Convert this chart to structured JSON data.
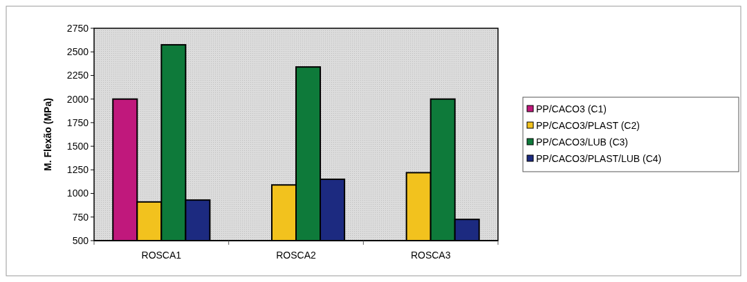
{
  "chart_data": {
    "type": "bar",
    "ylabel": "M. Flexão (MPa)",
    "categories": [
      "ROSCA1",
      "ROSCA2",
      "ROSCA3"
    ],
    "series": [
      {
        "name": "PP/CACO3 (C1)",
        "color": "#c0187c",
        "values": [
          2000,
          null,
          null
        ]
      },
      {
        "name": "PP/CACO3/PLAST (C2)",
        "color": "#f2c21e",
        "values": [
          910,
          1090,
          1220
        ]
      },
      {
        "name": "PP/CACO3/LUB (C3)",
        "color": "#0e7a3a",
        "values": [
          2575,
          2340,
          2000
        ]
      },
      {
        "name": "PP/CACO3/PLAST/LUB (C4)",
        "color": "#1c2a80",
        "values": [
          930,
          1150,
          725
        ]
      }
    ],
    "ylim": [
      500,
      2750
    ],
    "yticks": [
      500,
      750,
      1000,
      1250,
      1500,
      1750,
      2000,
      2250,
      2500,
      2750
    ],
    "grid": false,
    "legend": "right"
  }
}
